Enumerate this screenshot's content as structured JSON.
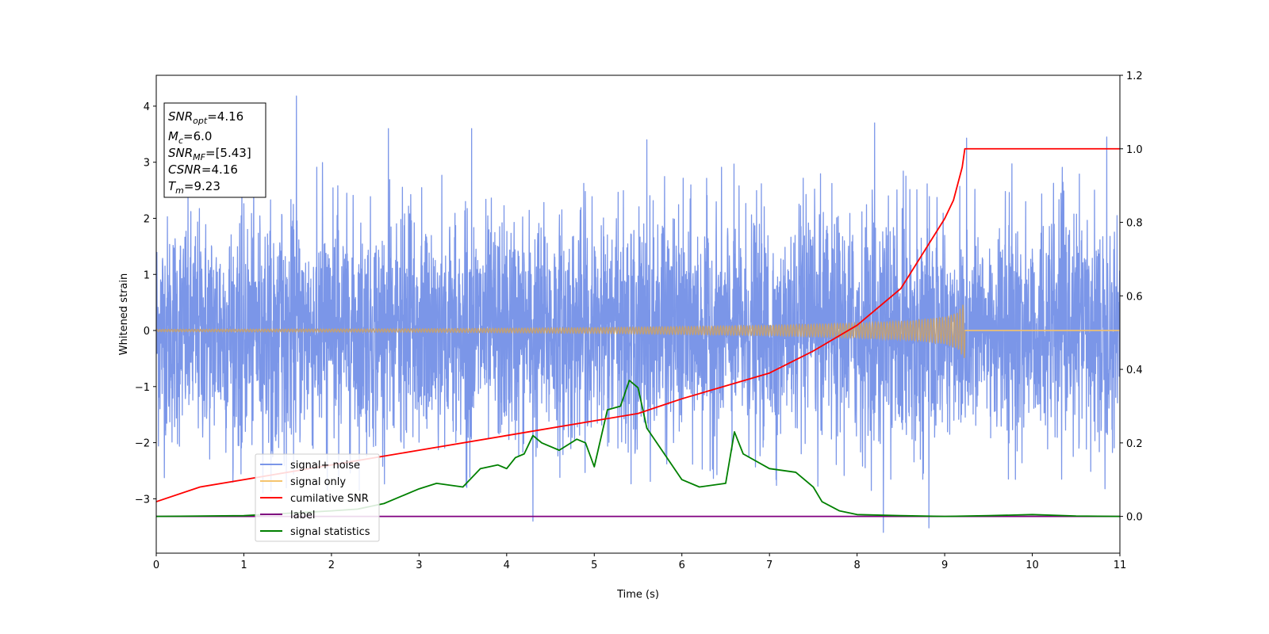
{
  "chart_data": {
    "type": "line",
    "xlabel": "Time (s)",
    "ylabel": "Whitened strain",
    "xlim": [
      0,
      11
    ],
    "ylim": [
      -3.97,
      4.55
    ],
    "y2lim": [
      -0.1,
      1.2
    ],
    "x_ticks": [
      "0",
      "1",
      "2",
      "3",
      "4",
      "5",
      "6",
      "7",
      "8",
      "9",
      "10",
      "11"
    ],
    "y_ticks": [
      "−3",
      "−2",
      "−1",
      "0",
      "1",
      "2",
      "3",
      "4"
    ],
    "y2_ticks": [
      "0.0",
      "0.2",
      "0.4",
      "0.6",
      "0.8",
      "1.0",
      "1.2"
    ],
    "grid": false,
    "legend_position": "bottom-left",
    "annotation": {
      "snr_opt": {
        "label": "SNR",
        "sub": "opt",
        "value": "=4.16"
      },
      "mc": {
        "label": "M",
        "sub": "c",
        "value": "=6.0"
      },
      "snr_mf": {
        "label": "SNR",
        "sub": "MF",
        "value": "=[5.43]"
      },
      "csnr": {
        "label": "CSNR",
        "value": "=4.16"
      },
      "tm": {
        "label": "T",
        "sub": "m",
        "value": "=9.23"
      }
    },
    "series": [
      {
        "name": "signal+ noise",
        "color": "#7b96e8",
        "axis": "left",
        "noise_sigma": 1.0,
        "min": -3.6,
        "max": 4.18,
        "peaks": [
          [
            1.6,
            4.18
          ],
          [
            3.6,
            3.6
          ],
          [
            8.2,
            3.7
          ],
          [
            9.25,
            3.43
          ],
          [
            10.85,
            3.45
          ],
          [
            4.3,
            -3.4
          ],
          [
            8.3,
            -3.6
          ],
          [
            8.82,
            -3.52
          ],
          [
            5.6,
            3.4
          ],
          [
            2.65,
            3.6
          ]
        ]
      },
      {
        "name": "signal only",
        "color": "#f5c46f",
        "axis": "left",
        "merger_time": 9.23,
        "envelope": [
          [
            0,
            0.02
          ],
          [
            3,
            0.03
          ],
          [
            5,
            0.05
          ],
          [
            6,
            0.07
          ],
          [
            7,
            0.09
          ],
          [
            8,
            0.13
          ],
          [
            8.6,
            0.17
          ],
          [
            9.0,
            0.24
          ],
          [
            9.15,
            0.32
          ],
          [
            9.2,
            0.45
          ],
          [
            9.23,
            0.5
          ]
        ]
      },
      {
        "name": "cumilative SNR",
        "color": "#ff0000",
        "axis": "right",
        "points": [
          [
            0,
            0.04
          ],
          [
            0.5,
            0.08
          ],
          [
            1,
            0.1
          ],
          [
            2,
            0.14
          ],
          [
            3,
            0.18
          ],
          [
            4,
            0.22
          ],
          [
            5,
            0.26
          ],
          [
            5.5,
            0.28
          ],
          [
            6,
            0.32
          ],
          [
            7,
            0.39
          ],
          [
            7.5,
            0.45
          ],
          [
            8,
            0.52
          ],
          [
            8.5,
            0.62
          ],
          [
            9,
            0.81
          ],
          [
            9.1,
            0.86
          ],
          [
            9.2,
            0.95
          ],
          [
            9.23,
            1.0
          ],
          [
            11,
            1.0
          ]
        ]
      },
      {
        "name": "label",
        "color": "#800080",
        "axis": "right",
        "points": [
          [
            0,
            0.0
          ],
          [
            11,
            0.0
          ]
        ]
      },
      {
        "name": "signal statistics",
        "color": "#008000",
        "axis": "right",
        "points": [
          [
            0,
            0.0
          ],
          [
            1.0,
            0.002
          ],
          [
            2.0,
            0.015
          ],
          [
            2.3,
            0.02
          ],
          [
            2.6,
            0.035
          ],
          [
            2.8,
            0.055
          ],
          [
            3.0,
            0.075
          ],
          [
            3.2,
            0.09
          ],
          [
            3.5,
            0.08
          ],
          [
            3.7,
            0.13
          ],
          [
            3.9,
            0.14
          ],
          [
            4.0,
            0.13
          ],
          [
            4.1,
            0.16
          ],
          [
            4.2,
            0.17
          ],
          [
            4.3,
            0.22
          ],
          [
            4.4,
            0.2
          ],
          [
            4.6,
            0.18
          ],
          [
            4.8,
            0.21
          ],
          [
            4.9,
            0.2
          ],
          [
            5.0,
            0.135
          ],
          [
            5.15,
            0.29
          ],
          [
            5.3,
            0.3
          ],
          [
            5.4,
            0.37
          ],
          [
            5.5,
            0.35
          ],
          [
            5.6,
            0.24
          ],
          [
            5.8,
            0.17
          ],
          [
            6.0,
            0.1
          ],
          [
            6.2,
            0.08
          ],
          [
            6.5,
            0.09
          ],
          [
            6.6,
            0.23
          ],
          [
            6.7,
            0.17
          ],
          [
            7.0,
            0.13
          ],
          [
            7.3,
            0.12
          ],
          [
            7.5,
            0.08
          ],
          [
            7.6,
            0.04
          ],
          [
            7.8,
            0.015
          ],
          [
            8.0,
            0.005
          ],
          [
            8.5,
            0.002
          ],
          [
            9.0,
            0.0
          ],
          [
            9.5,
            0.002
          ],
          [
            10.0,
            0.005
          ],
          [
            10.5,
            0.001
          ],
          [
            11,
            0.0
          ]
        ]
      }
    ]
  }
}
